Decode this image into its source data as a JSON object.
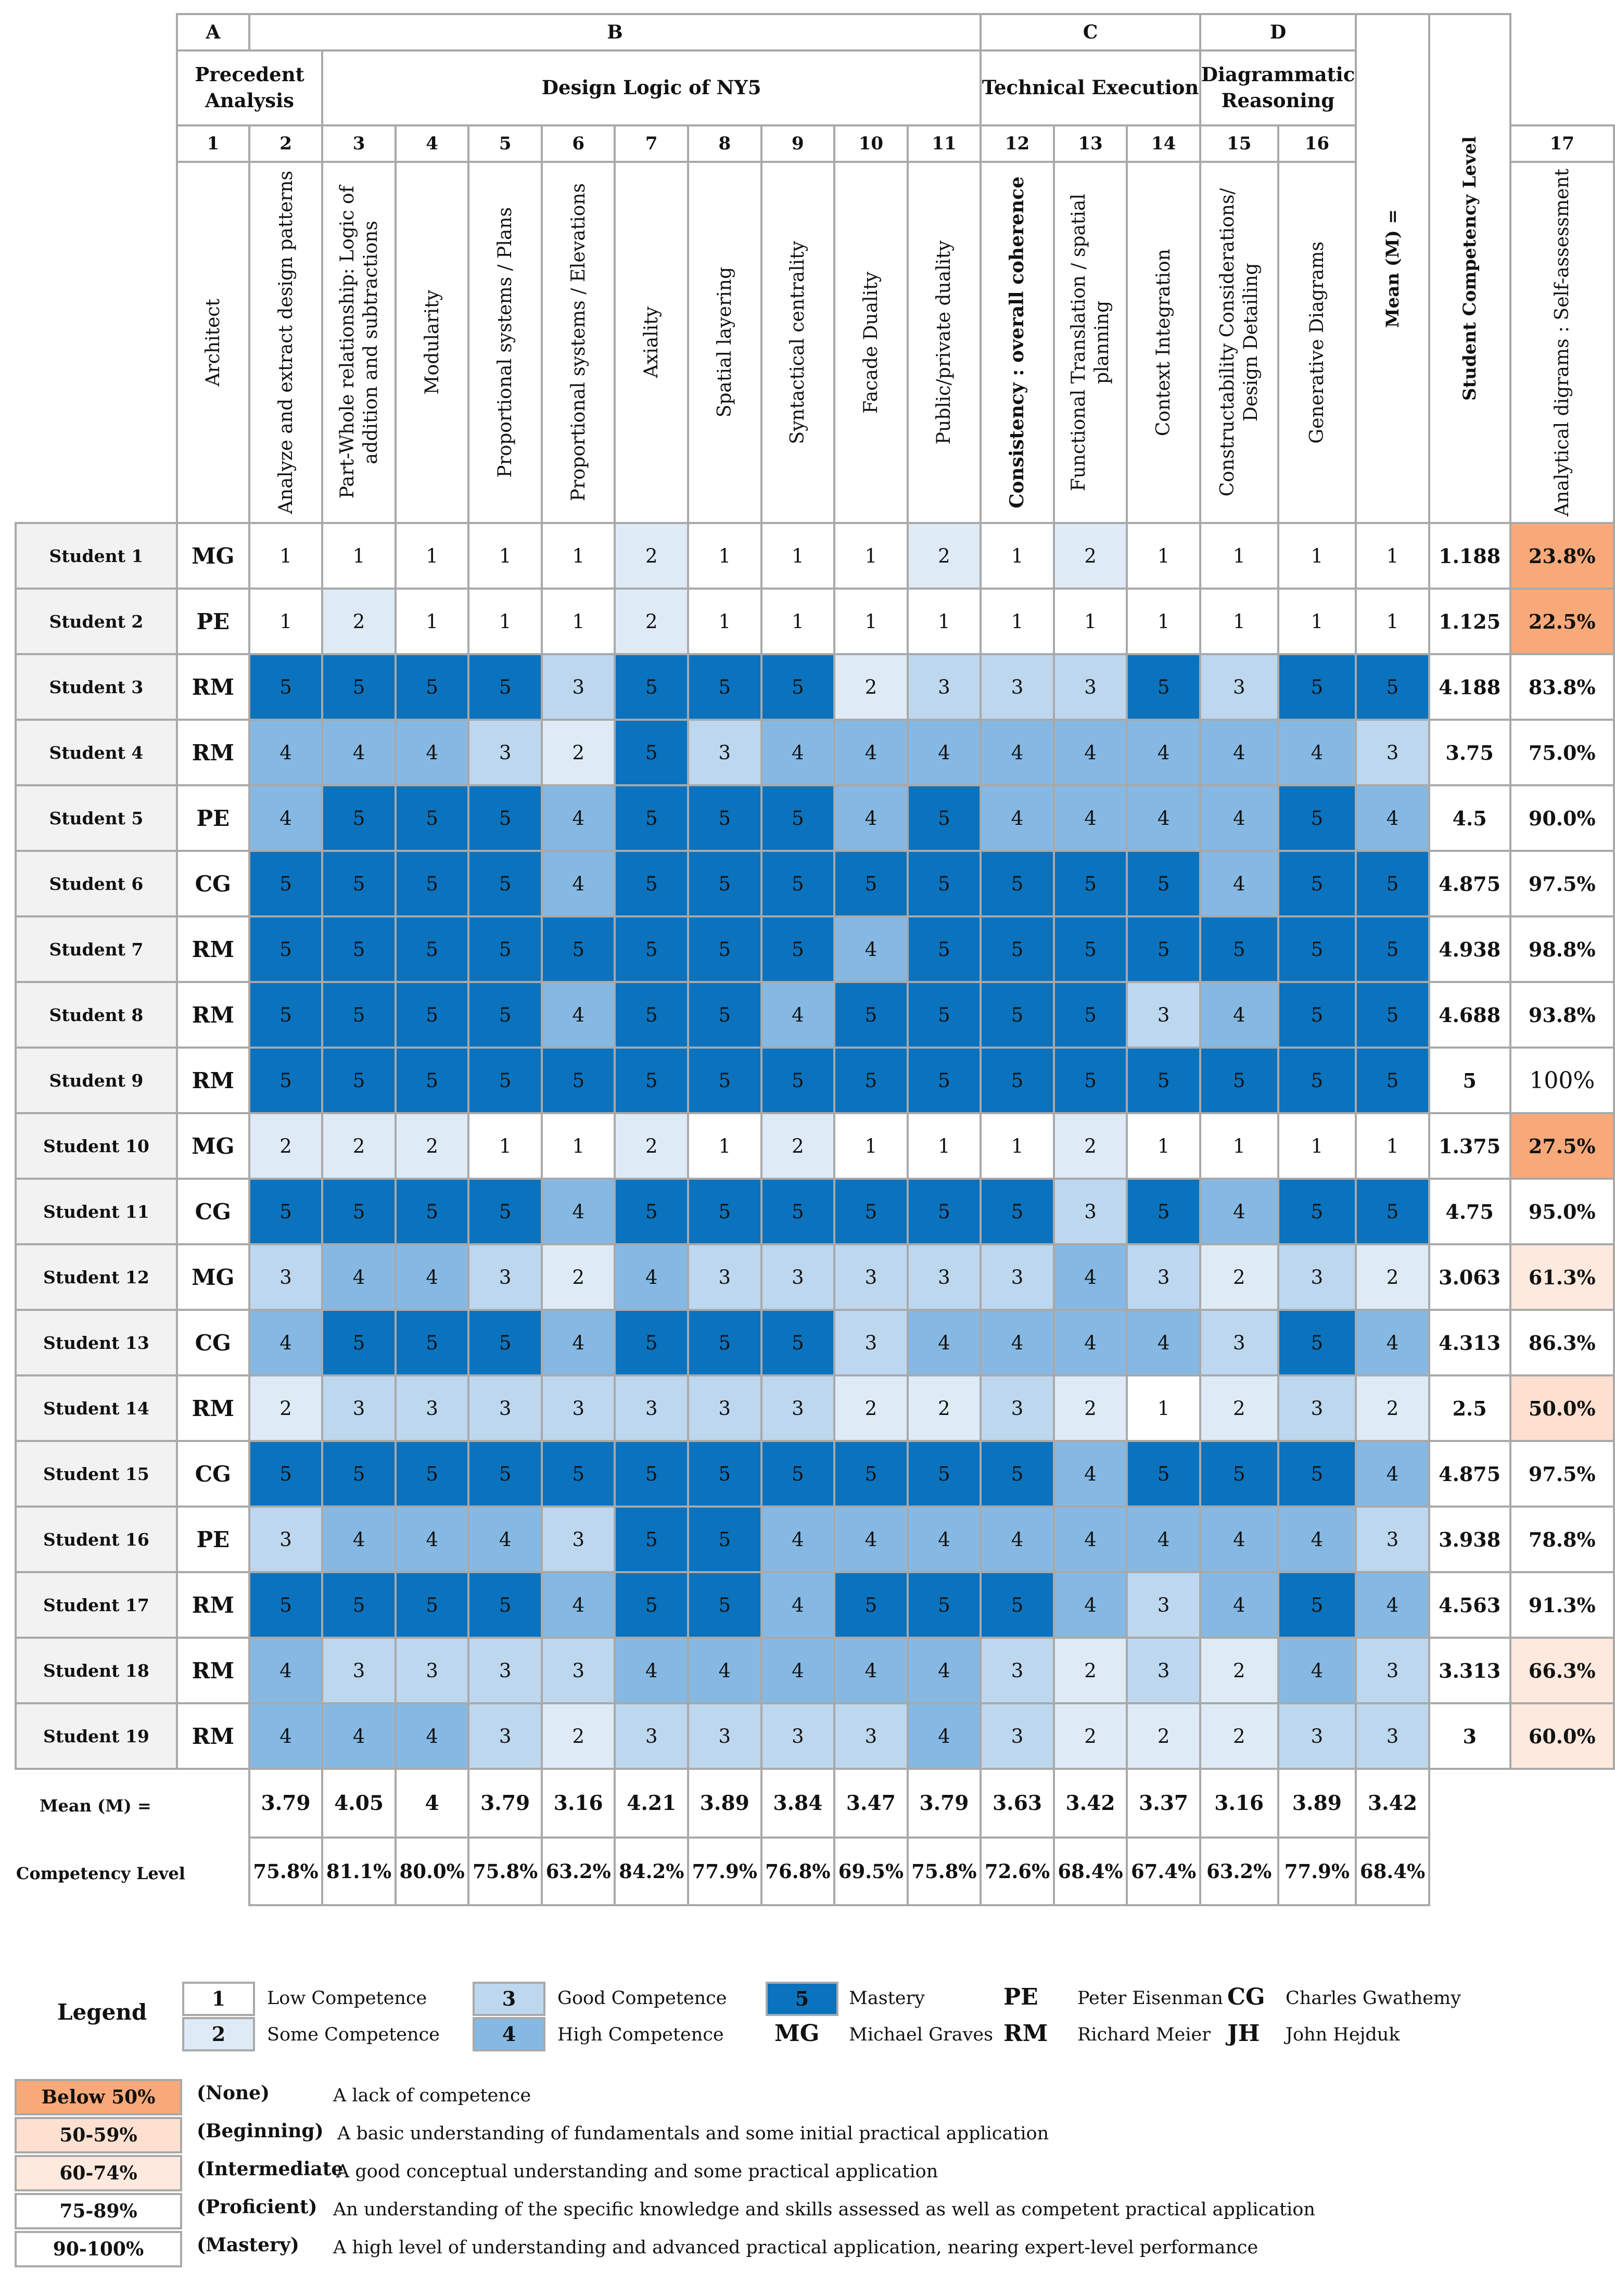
{
  "sections": [
    {
      "letter": "A",
      "name": "Precedent Analysis"
    },
    {
      "letter": "B",
      "name": "Design Logic of NY5"
    },
    {
      "letter": "C",
      "name": "Technical Execution"
    },
    {
      "letter": "D",
      "name": "Diagrammatic Reasoning"
    }
  ],
  "columns": {
    "architect_number": "1",
    "architect_label": "Architect",
    "mean_header": "Mean (M) =",
    "level_header": "Student Competency Level",
    "criteria": [
      {
        "num": "2",
        "label": "Analyze and extract design patterns"
      },
      {
        "num": "3",
        "label": "Part-Whole relationship: Logic of addition and subtractions"
      },
      {
        "num": "4",
        "label": "Modularity"
      },
      {
        "num": "5",
        "label": "Proportional systems / Plans"
      },
      {
        "num": "6",
        "label": "Proportional systems / Elevations"
      },
      {
        "num": "7",
        "label": "Axiality"
      },
      {
        "num": "8",
        "label": "Spatial layering"
      },
      {
        "num": "9",
        "label": "Syntactical centrality"
      },
      {
        "num": "10",
        "label": "Facade Duality"
      },
      {
        "num": "11",
        "label": "Public/private duality"
      },
      {
        "num": "12",
        "label": "Consistency : overall coherence"
      },
      {
        "num": "13",
        "label": "Functional Translation / spatial planning"
      },
      {
        "num": "14",
        "label": "Context Integration"
      },
      {
        "num": "15",
        "label": "Constructability Considerations/ Design Detailing"
      },
      {
        "num": "16",
        "label": "Generative Diagrams"
      },
      {
        "num": "17",
        "label": "Analytical digrams : Self-assessment"
      }
    ]
  },
  "students": [
    {
      "name": "Student 1",
      "architect": "MG",
      "mean": "1.188",
      "level": "23.8%"
    },
    {
      "name": "Student 2",
      "architect": "PE",
      "mean": "1.125",
      "level": "22.5%"
    },
    {
      "name": "Student 3",
      "architect": "RM",
      "mean": "4.188",
      "level": "83.8%"
    },
    {
      "name": "Student 4",
      "architect": "RM",
      "mean": "3.75",
      "level": "75.0%"
    },
    {
      "name": "Student 5",
      "architect": "PE",
      "mean": "4.5",
      "level": "90.0%"
    },
    {
      "name": "Student 6",
      "architect": "CG",
      "mean": "4.875",
      "level": "97.5%"
    },
    {
      "name": "Student 7",
      "architect": "RM",
      "mean": "4.938",
      "level": "98.8%"
    },
    {
      "name": "Student 8",
      "architect": "RM",
      "mean": "4.688",
      "level": "93.8%"
    },
    {
      "name": "Student 9",
      "architect": "RM",
      "mean": "5",
      "level": "100%"
    },
    {
      "name": "Student 10",
      "architect": "MG",
      "mean": "1.375",
      "level": "27.5%"
    },
    {
      "name": "Student 11",
      "architect": "CG",
      "mean": "4.75",
      "level": "95.0%"
    },
    {
      "name": "Student 12",
      "architect": "MG",
      "mean": "3.063",
      "level": "61.3%"
    },
    {
      "name": "Student 13",
      "architect": "CG",
      "mean": "4.313",
      "level": "86.3%"
    },
    {
      "name": "Student 14",
      "architect": "RM",
      "mean": "2.5",
      "level": "50.0%"
    },
    {
      "name": "Student 15",
      "architect": "CG",
      "mean": "4.875",
      "level": "97.5%"
    },
    {
      "name": "Student 16",
      "architect": "PE",
      "mean": "3.938",
      "level": "78.8%"
    },
    {
      "name": "Student 17",
      "architect": "RM",
      "mean": "4.563",
      "level": "91.3%"
    },
    {
      "name": "Student 18",
      "architect": "RM",
      "mean": "3.313",
      "level": "66.3%"
    },
    {
      "name": "Student 19",
      "architect": "RM",
      "mean": "3",
      "level": "60.0%"
    }
  ],
  "footer": {
    "mean_label": "Mean (M) =",
    "level_label": "Competency Level",
    "means": [
      "3.79",
      "4.05",
      "4",
      "3.79",
      "3.16",
      "4.21",
      "3.89",
      "3.84",
      "3.47",
      "3.79",
      "3.63",
      "3.42",
      "3.37",
      "3.16",
      "3.89",
      "3.42"
    ],
    "levels": [
      "75.8%",
      "81.1%",
      "80.0%",
      "75.8%",
      "63.2%",
      "84.2%",
      "77.9%",
      "76.8%",
      "69.5%",
      "75.8%",
      "72.6%",
      "68.4%",
      "67.4%",
      "63.2%",
      "77.9%",
      "68.4%"
    ]
  },
  "legend": {
    "title": "Legend",
    "scores": [
      {
        "value": "1",
        "label": "Low Competence"
      },
      {
        "value": "2",
        "label": "Some Competence"
      },
      {
        "value": "3",
        "label": "Good Competence"
      },
      {
        "value": "4",
        "label": "High Competence"
      },
      {
        "value": "5",
        "label": "Mastery"
      }
    ],
    "architects": [
      {
        "abbr": "PE",
        "name": "Peter Eisenman"
      },
      {
        "abbr": "CG",
        "name": "Charles Gwathemy"
      },
      {
        "abbr": "MG",
        "name": "Michael Graves"
      },
      {
        "abbr": "RM",
        "name": "Richard Meier"
      },
      {
        "abbr": "JH",
        "name": "John Hejduk"
      }
    ]
  },
  "levels": [
    {
      "range": "Below 50%",
      "name": "(None)",
      "desc": "A lack of competence"
    },
    {
      "range": "50-59%",
      "name": "(Beginning)",
      "desc": "A basic understanding of fundamentals and some initial practical application"
    },
    {
      "range": "60-74%",
      "name": "(Intermediate",
      "desc": "A good conceptual understanding and some practical application"
    },
    {
      "range": "75-89%",
      "name": "(Proficient)",
      "desc": "An understanding of the specific knowledge and skills assessed as well as competent practical application"
    },
    {
      "range": "90-100%",
      "name": "(Mastery)",
      "desc": "A high level of understanding and advanced practical application, nearing expert-level performance"
    }
  ],
  "colors": {
    "score_1": "#ffffff",
    "score_2": "#deebf7",
    "score_3": "#bdd7ee",
    "score_4": "#85b9e3",
    "score_5": "#0b72bd",
    "below_50": "#f8a97a",
    "range_50_59": "#fde0d0",
    "range_60_74": "#fde9de",
    "range_75_plus": "#ffffff"
  },
  "chart_data": {
    "type": "heatmap",
    "x": [
      "2",
      "3",
      "4",
      "5",
      "6",
      "7",
      "8",
      "9",
      "10",
      "11",
      "12",
      "13",
      "14",
      "15",
      "16",
      "17"
    ],
    "y": [
      "Student 1",
      "Student 2",
      "Student 3",
      "Student 4",
      "Student 5",
      "Student 6",
      "Student 7",
      "Student 8",
      "Student 9",
      "Student 10",
      "Student 11",
      "Student 12",
      "Student 13",
      "Student 14",
      "Student 15",
      "Student 16",
      "Student 17",
      "Student 18",
      "Student 19"
    ],
    "values": [
      [
        1,
        1,
        1,
        1,
        1,
        2,
        1,
        1,
        1,
        2,
        1,
        2,
        1,
        1,
        1,
        1
      ],
      [
        1,
        2,
        1,
        1,
        1,
        2,
        1,
        1,
        1,
        1,
        1,
        1,
        1,
        1,
        1,
        1
      ],
      [
        5,
        5,
        5,
        5,
        3,
        5,
        5,
        5,
        2,
        3,
        3,
        3,
        5,
        3,
        5,
        5
      ],
      [
        4,
        4,
        4,
        3,
        2,
        5,
        3,
        4,
        4,
        4,
        4,
        4,
        4,
        4,
        4,
        3
      ],
      [
        4,
        5,
        5,
        5,
        4,
        5,
        5,
        5,
        4,
        5,
        4,
        4,
        4,
        4,
        5,
        4
      ],
      [
        5,
        5,
        5,
        5,
        4,
        5,
        5,
        5,
        5,
        5,
        5,
        5,
        5,
        4,
        5,
        5
      ],
      [
        5,
        5,
        5,
        5,
        5,
        5,
        5,
        5,
        4,
        5,
        5,
        5,
        5,
        5,
        5,
        5
      ],
      [
        5,
        5,
        5,
        5,
        4,
        5,
        5,
        4,
        5,
        5,
        5,
        5,
        3,
        4,
        5,
        5
      ],
      [
        5,
        5,
        5,
        5,
        5,
        5,
        5,
        5,
        5,
        5,
        5,
        5,
        5,
        5,
        5,
        5
      ],
      [
        2,
        2,
        2,
        1,
        1,
        2,
        1,
        2,
        1,
        1,
        1,
        2,
        1,
        1,
        1,
        1
      ],
      [
        5,
        5,
        5,
        5,
        4,
        5,
        5,
        5,
        5,
        5,
        5,
        3,
        5,
        4,
        5,
        5
      ],
      [
        3,
        4,
        4,
        3,
        2,
        4,
        3,
        3,
        3,
        3,
        3,
        4,
        3,
        2,
        3,
        2
      ],
      [
        4,
        5,
        5,
        5,
        4,
        5,
        5,
        5,
        3,
        4,
        4,
        4,
        4,
        3,
        5,
        4
      ],
      [
        2,
        3,
        3,
        3,
        3,
        3,
        3,
        3,
        2,
        2,
        3,
        2,
        1,
        2,
        3,
        2
      ],
      [
        5,
        5,
        5,
        5,
        5,
        5,
        5,
        5,
        5,
        5,
        5,
        4,
        5,
        5,
        5,
        4
      ],
      [
        3,
        4,
        4,
        4,
        3,
        5,
        5,
        4,
        4,
        4,
        4,
        4,
        4,
        4,
        4,
        3
      ],
      [
        5,
        5,
        5,
        5,
        4,
        5,
        5,
        4,
        5,
        5,
        5,
        4,
        3,
        4,
        5,
        4
      ],
      [
        4,
        3,
        3,
        3,
        3,
        4,
        4,
        4,
        4,
        4,
        3,
        2,
        3,
        2,
        4,
        3
      ],
      [
        4,
        4,
        4,
        3,
        2,
        3,
        3,
        3,
        3,
        4,
        3,
        2,
        2,
        2,
        3,
        3
      ]
    ],
    "scale": [
      1,
      5
    ]
  }
}
